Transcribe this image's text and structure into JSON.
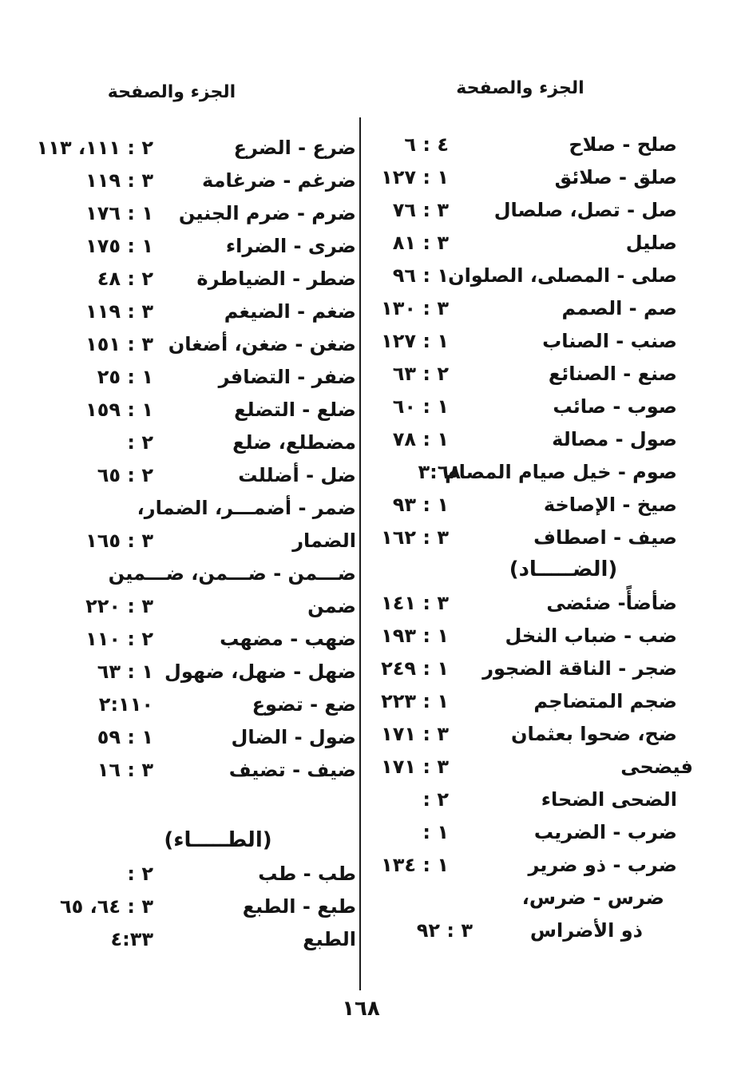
{
  "page": {
    "background": "#ffffff",
    "ink_color": "#141414",
    "page_number": "١٦٨"
  },
  "columns": {
    "right": {
      "header": "الجزء والصفحة",
      "rows": [
        {
          "type": "entry",
          "word": "صلح - صلاح",
          "ref": "٤ : ٦"
        },
        {
          "type": "entry",
          "word": "صلق - صلائق",
          "ref": "١ : ١٢٧"
        },
        {
          "type": "entry",
          "word": "صل - تصل، صلصال",
          "ref": "٣ : ٧٦"
        },
        {
          "type": "entry",
          "word": "صليل",
          "ref": "٣ : ٨١"
        },
        {
          "type": "entry",
          "word": "صلى - المصلى، الصلوان",
          "ref": "١ : ٩٦"
        },
        {
          "type": "entry",
          "word": "صم - الصمم",
          "ref": "٣ : ١٣٠"
        },
        {
          "type": "entry",
          "word": "صنب - الصناب",
          "ref": "١ : ١٢٧"
        },
        {
          "type": "entry",
          "word": "صنع - الصنائع",
          "ref": "٢ : ٦٣"
        },
        {
          "type": "entry",
          "word": "صوب - صائب",
          "ref": "١ : ٦٠"
        },
        {
          "type": "entry",
          "word": "صول - مصالة",
          "ref": "١ : ٧٨"
        },
        {
          "type": "entry",
          "word": "صوم - خيل صيام المصام",
          "ref": "٣:٦٨",
          "ref_shift": 15
        },
        {
          "type": "entry",
          "word": "صيخ - الإصاخة",
          "ref": "١ : ٩٣"
        },
        {
          "type": "entry",
          "word": "صيف - اصطاف",
          "ref": "٣ : ١٦٢"
        },
        {
          "type": "section",
          "label": "(الضـــــاد)"
        },
        {
          "type": "entry",
          "word": "ضأضأً- ضئضى",
          "ref": "٣ : ١٤١"
        },
        {
          "type": "entry",
          "word": "ضب - ضباب النخل",
          "ref": "١ : ١٩٣"
        },
        {
          "type": "entry",
          "word": "ضجر - الناقة الضجور",
          "ref": "١ : ٢٤٩"
        },
        {
          "type": "entry",
          "word": "ضجم المتضاجم",
          "ref": "١ : ٢٢٣"
        },
        {
          "type": "entry",
          "word": "ضح، ضحوا بعثمان",
          "ref": "٣ : ١٧١"
        },
        {
          "type": "entry",
          "word": "فيضحى",
          "ref": "٣ : ١٧١",
          "indent": -20
        },
        {
          "type": "entry",
          "word": "الضحى الضحاء",
          "ref": "٢ :"
        },
        {
          "type": "entry",
          "word": "ضرب - الضريب",
          "ref": "١ :"
        },
        {
          "type": "entry",
          "word": "ضرب - ذو ضرير",
          "ref": "١ : ١٣٤"
        },
        {
          "type": "entry",
          "word": "ضرس - ضرس،",
          "ref": "",
          "indent": 16
        },
        {
          "type": "entry",
          "word": "ذو الأضراس",
          "ref": "٣ : ٩٢",
          "indent": 43,
          "ref_shift": 30
        }
      ]
    },
    "left": {
      "header": "الجزء والصفحة",
      "rows": [
        {
          "type": "entry",
          "word": "ضرع - الضرع",
          "ref": "٢ : ١١١، ١١٣"
        },
        {
          "type": "entry",
          "word": "ضرغم - ضرغامة",
          "ref": "٣ : ١١٩"
        },
        {
          "type": "entry",
          "word": "ضرم - ضرم الجنين",
          "ref": "١ : ١٧٦"
        },
        {
          "type": "entry",
          "word": "ضرى - الضراء",
          "ref": "١ : ١٧٥"
        },
        {
          "type": "entry",
          "word": "ضطر - الضياطرة",
          "ref": "٢ : ٤٨"
        },
        {
          "type": "entry",
          "word": "ضغم - الضيغم",
          "ref": "٣ : ١١٩"
        },
        {
          "type": "entry",
          "word": "ضغن - ضغن، أضغان",
          "ref": "٣ : ١٥١"
        },
        {
          "type": "entry",
          "word": "ضفر - التضافر",
          "ref": "١ : ٢٥"
        },
        {
          "type": "entry",
          "word": "ضلع - التضلع",
          "ref": "١ : ١٥٩"
        },
        {
          "type": "entry",
          "word": "مضطلع، ضلع",
          "ref": "٢ :"
        },
        {
          "type": "entry",
          "word": "ضل - أضللت",
          "ref": "٢ : ٦٥"
        },
        {
          "type": "entry",
          "word": "ضمر - أضمـــر، الضمار،",
          "ref": ""
        },
        {
          "type": "entry",
          "word": "الضمار",
          "ref": "٣ : ١٦٥"
        },
        {
          "type": "entry",
          "word": "ضـــمن - ضـــمن، ضـــمين",
          "ref": ""
        },
        {
          "type": "entry",
          "word": "ضمن",
          "ref": "٣ : ٢٢٠"
        },
        {
          "type": "entry",
          "word": "ضهب - مضهب",
          "ref": "٢ : ١١٠"
        },
        {
          "type": "entry",
          "word": "ضهل - ضهل، ضهول",
          "ref": "١ : ٦٣"
        },
        {
          "type": "entry",
          "word": "ضع - تضوع",
          "ref": "٢:١١٠"
        },
        {
          "type": "entry",
          "word": "ضول - الضال",
          "ref": "١ : ٥٩"
        },
        {
          "type": "entry",
          "word": "ضيف - تضيف",
          "ref": "٣ : ١٦"
        },
        {
          "type": "section",
          "label": "(الطـــــاء)",
          "gap_before": true
        },
        {
          "type": "entry",
          "word": "طب - طب",
          "ref": "٢ :"
        },
        {
          "type": "entry",
          "word": "طبع - الطبع",
          "ref": "٣ : ٦٤، ٦٥"
        },
        {
          "type": "entry",
          "word": "الطبع",
          "ref": "٤:٣٣"
        }
      ]
    }
  }
}
